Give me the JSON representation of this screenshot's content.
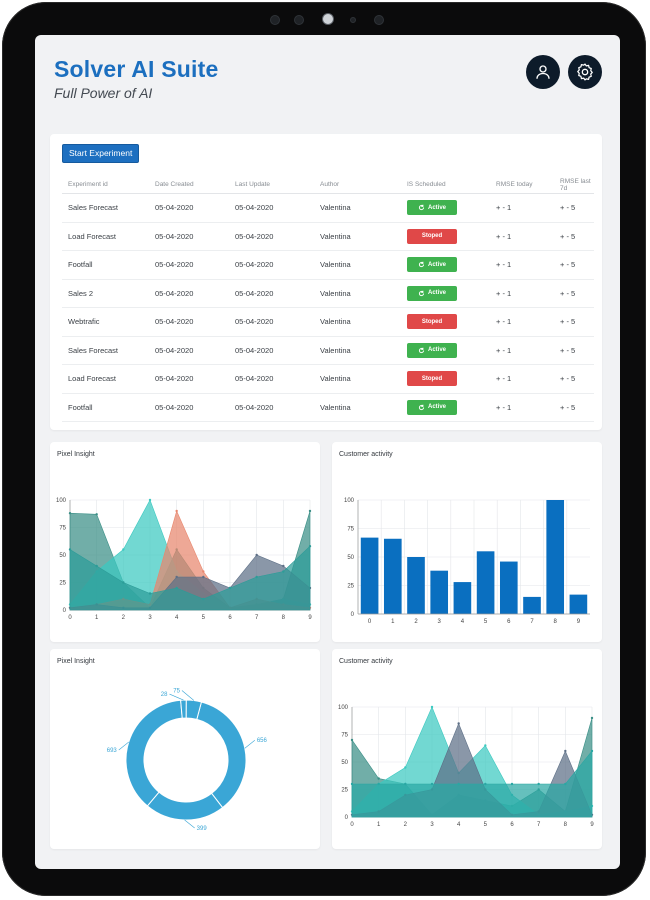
{
  "app": {
    "title": "Solver AI Suite",
    "subtitle": "Full Power of AI"
  },
  "header": {
    "user_icon": "user-icon",
    "settings_icon": "gear-icon"
  },
  "experiments": {
    "start_label": "Start Experiment",
    "columns": [
      "Experiment id",
      "Date Created",
      "Last Update",
      "Author",
      "IS Scheduled",
      "RMSE today",
      "RMSE last 7d"
    ],
    "rows": [
      {
        "id": "Sales Forecast",
        "created": "05-04-2020",
        "updated": "05-04-2020",
        "author": "Valentina",
        "status": "Active",
        "rmse_today": "+ - 1",
        "rmse_7d": "+ - 5"
      },
      {
        "id": "Load Forecast",
        "created": "05-04-2020",
        "updated": "05-04-2020",
        "author": "Valentina",
        "status": "Stoped",
        "rmse_today": "+ - 1",
        "rmse_7d": "+ - 5"
      },
      {
        "id": "Footfall",
        "created": "05-04-2020",
        "updated": "05-04-2020",
        "author": "Valentina",
        "status": "Active",
        "rmse_today": "+ - 1",
        "rmse_7d": "+ - 5"
      },
      {
        "id": "Sales 2",
        "created": "05-04-2020",
        "updated": "05-04-2020",
        "author": "Valentina",
        "status": "Active",
        "rmse_today": "+ - 1",
        "rmse_7d": "+ - 5"
      },
      {
        "id": "Webtrafic",
        "created": "05-04-2020",
        "updated": "05-04-2020",
        "author": "Valentina",
        "status": "Stoped",
        "rmse_today": "+ - 1",
        "rmse_7d": "+ - 5"
      },
      {
        "id": "Sales Forecast",
        "created": "05-04-2020",
        "updated": "05-04-2020",
        "author": "Valentina",
        "status": "Active",
        "rmse_today": "+ - 1",
        "rmse_7d": "+ - 5"
      },
      {
        "id": "Load Forecast",
        "created": "05-04-2020",
        "updated": "05-04-2020",
        "author": "Valentina",
        "status": "Stoped",
        "rmse_today": "+ - 1",
        "rmse_7d": "+ - 5"
      },
      {
        "id": "Footfall",
        "created": "05-04-2020",
        "updated": "05-04-2020",
        "author": "Valentina",
        "status": "Active",
        "rmse_today": "+ - 1",
        "rmse_7d": "+ - 5"
      }
    ],
    "status_colors": {
      "Active": "#3fb24f",
      "Stoped": "#e04848"
    }
  },
  "charts": {
    "pixel_insight_area": {
      "title": "Pixel Insight",
      "type": "area",
      "x": [
        0,
        1,
        2,
        3,
        4,
        5,
        6,
        7,
        8,
        9
      ],
      "yticks": [
        "0",
        "25",
        "50",
        "75",
        "100"
      ],
      "ylim": [
        0,
        100
      ],
      "series": [
        {
          "values": [
            88,
            87,
            25,
            2,
            55,
            20,
            2,
            5,
            10,
            90
          ],
          "color": "#3a8f86"
        },
        {
          "values": [
            5,
            35,
            55,
            100,
            35,
            15,
            2,
            5,
            10,
            5
          ],
          "color": "#3cc9c0"
        },
        {
          "values": [
            2,
            5,
            10,
            5,
            90,
            35,
            2,
            10,
            5,
            2
          ],
          "color": "#e8876e"
        },
        {
          "values": [
            2,
            5,
            2,
            2,
            30,
            30,
            20,
            50,
            40,
            20
          ],
          "color": "#5d6f86"
        },
        {
          "values": [
            55,
            40,
            25,
            15,
            20,
            10,
            20,
            30,
            35,
            58
          ],
          "color": "#2c9c98"
        }
      ]
    },
    "customer_activity_bar": {
      "title": "Customer activity",
      "type": "bar",
      "categories": [
        "0",
        "1",
        "2",
        "3",
        "4",
        "5",
        "6",
        "7",
        "8",
        "9"
      ],
      "values": [
        67,
        66,
        50,
        38,
        28,
        55,
        46,
        15,
        100,
        17
      ],
      "yticks": [
        "0",
        "25",
        "50",
        "75",
        "100"
      ],
      "ylim": [
        0,
        100
      ],
      "color": "#0a6fc0"
    },
    "pixel_insight_donut": {
      "title": "Pixel Insight",
      "type": "pie",
      "labels": [
        "656",
        "399",
        "693",
        "28",
        "75"
      ],
      "values": [
        656,
        399,
        693,
        28,
        75
      ],
      "color": "#3aa6d6"
    },
    "customer_activity_area": {
      "title": "Customer activity",
      "type": "area",
      "x": [
        0,
        1,
        2,
        3,
        4,
        5,
        6,
        7,
        8,
        9
      ],
      "yticks": [
        "0",
        "25",
        "50",
        "75",
        "100"
      ],
      "ylim": [
        0,
        100
      ],
      "series": [
        {
          "values": [
            70,
            35,
            30,
            2,
            20,
            15,
            10,
            25,
            5,
            90
          ],
          "color": "#3a8f86"
        },
        {
          "values": [
            5,
            30,
            45,
            100,
            40,
            65,
            20,
            2,
            5,
            10
          ],
          "color": "#3cc9c0"
        },
        {
          "values": [
            2,
            5,
            20,
            25,
            85,
            25,
            2,
            5,
            60,
            2
          ],
          "color": "#5d6f86"
        },
        {
          "values": [
            30,
            30,
            30,
            30,
            30,
            30,
            30,
            30,
            30,
            60
          ],
          "color": "#2aa7a4"
        }
      ]
    }
  }
}
